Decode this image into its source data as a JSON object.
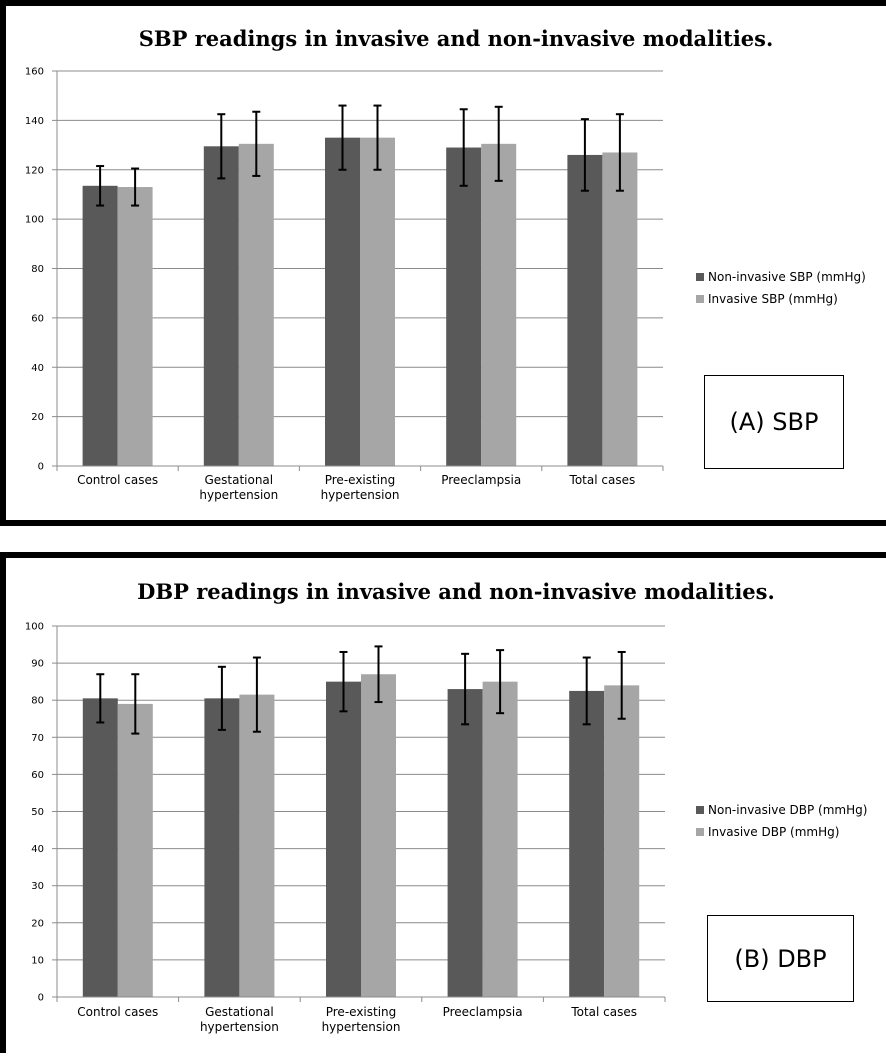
{
  "chart_data": [
    {
      "type": "bar",
      "title": "SBP readings in invasive and non-invasive modalities.",
      "categories": [
        "Control cases",
        "Gestational hypertension",
        "Pre-existing hypertension",
        "Preeclampsia",
        "Total cases"
      ],
      "category_lines": [
        [
          "Control cases"
        ],
        [
          "Gestational",
          "hypertension"
        ],
        [
          "Pre-existing",
          "hypertension"
        ],
        [
          "Preeclampsia"
        ],
        [
          "Total cases"
        ]
      ],
      "series": [
        {
          "name": "Non-invasive SBP (mmHg)",
          "color": "#595959",
          "values": [
            113.5,
            129.5,
            133,
            129,
            126
          ],
          "error": [
            8,
            13,
            13,
            15.5,
            14.5
          ]
        },
        {
          "name": "Invasive SBP (mmHg)",
          "color": "#a6a6a6",
          "values": [
            113,
            130.5,
            133,
            130.5,
            127
          ],
          "error": [
            7.5,
            13,
            13,
            15,
            15.5
          ]
        }
      ],
      "ylim": [
        0,
        160
      ],
      "yticks": [
        "0",
        "20",
        "40",
        "60",
        "80",
        "100",
        "120",
        "140",
        "160"
      ],
      "grid": true,
      "legend": "right",
      "tag": "(A) SBP"
    },
    {
      "type": "bar",
      "title": "DBP readings in invasive and non-invasive modalities.",
      "categories": [
        "Control cases",
        "Gestational hypertension",
        "Pre-existing hypertension",
        "Preeclampsia",
        "Total cases"
      ],
      "category_lines": [
        [
          "Control cases"
        ],
        [
          "Gestational",
          "hypertension"
        ],
        [
          "Pre-existing",
          "hypertension"
        ],
        [
          "Preeclampsia"
        ],
        [
          "Total cases"
        ]
      ],
      "series": [
        {
          "name": "Non-invasive DBP (mmHg)",
          "color": "#595959",
          "values": [
            80.5,
            80.5,
            85,
            83,
            82.5
          ],
          "error": [
            6.5,
            8.5,
            8,
            9.5,
            9
          ]
        },
        {
          "name": "Invasive DBP (mmHg)",
          "color": "#a6a6a6",
          "values": [
            79,
            81.5,
            87,
            85,
            84
          ],
          "error": [
            8,
            10,
            7.5,
            8.5,
            9
          ]
        }
      ],
      "ylim": [
        0,
        100
      ],
      "yticks": [
        "0",
        "10",
        "20",
        "30",
        "40",
        "50",
        "60",
        "70",
        "80",
        "90",
        "100"
      ],
      "grid": true,
      "legend": "right",
      "tag": "(B) DBP"
    }
  ]
}
